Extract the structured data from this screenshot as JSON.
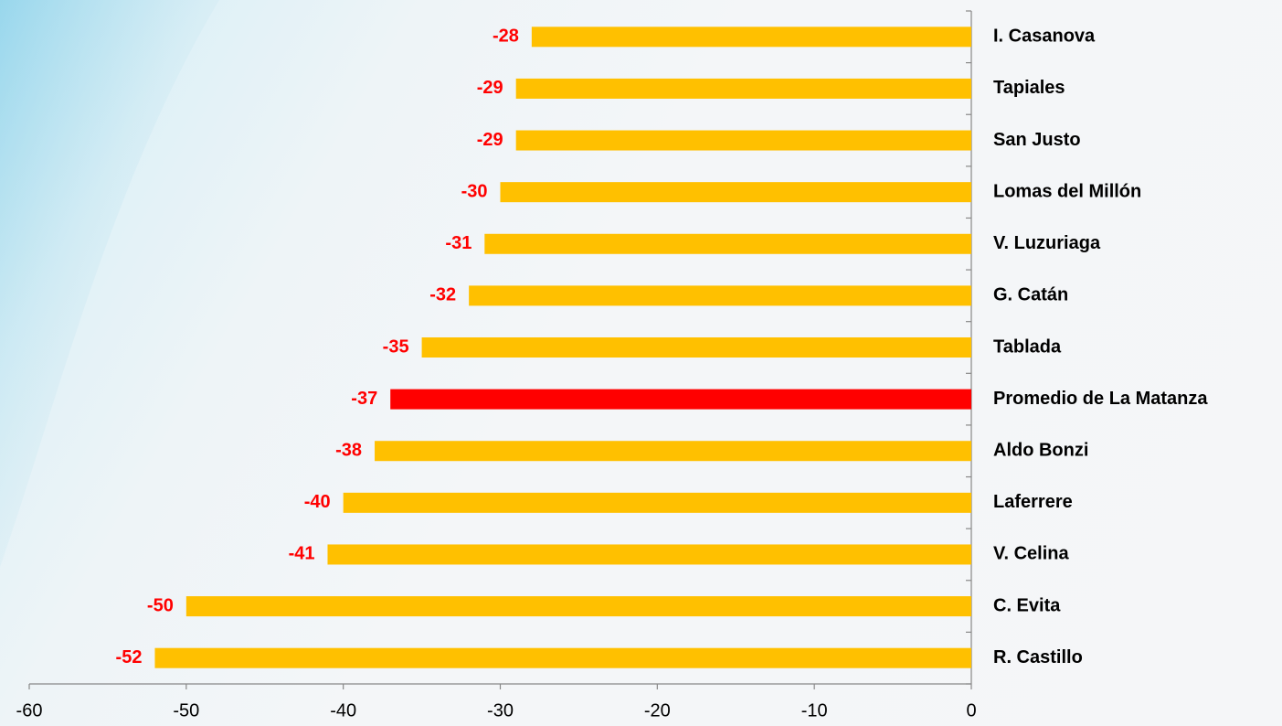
{
  "chart_data": {
    "type": "hbar",
    "categories": [
      "I. Casanova",
      "Tapiales",
      "San Justo",
      "Lomas del Millón",
      "V. Luzuriaga",
      "G. Catán",
      "Tablada",
      "Promedio de La Matanza",
      "Aldo Bonzi",
      "Laferrere",
      "V. Celina",
      "C. Evita",
      "R. Castillo"
    ],
    "values": [
      -28,
      -29,
      -29,
      -30,
      -31,
      -32,
      -35,
      -37,
      -38,
      -40,
      -41,
      -50,
      -52
    ],
    "colors": [
      "#ffc000",
      "#ffc000",
      "#ffc000",
      "#ffc000",
      "#ffc000",
      "#ffc000",
      "#ffc000",
      "#ff0000",
      "#ffc000",
      "#ffc000",
      "#ffc000",
      "#ffc000",
      "#ffc000"
    ],
    "xlim": [
      -60,
      0
    ],
    "xticks": [
      -60,
      -50,
      -40,
      -30,
      -20,
      -10,
      0
    ]
  }
}
